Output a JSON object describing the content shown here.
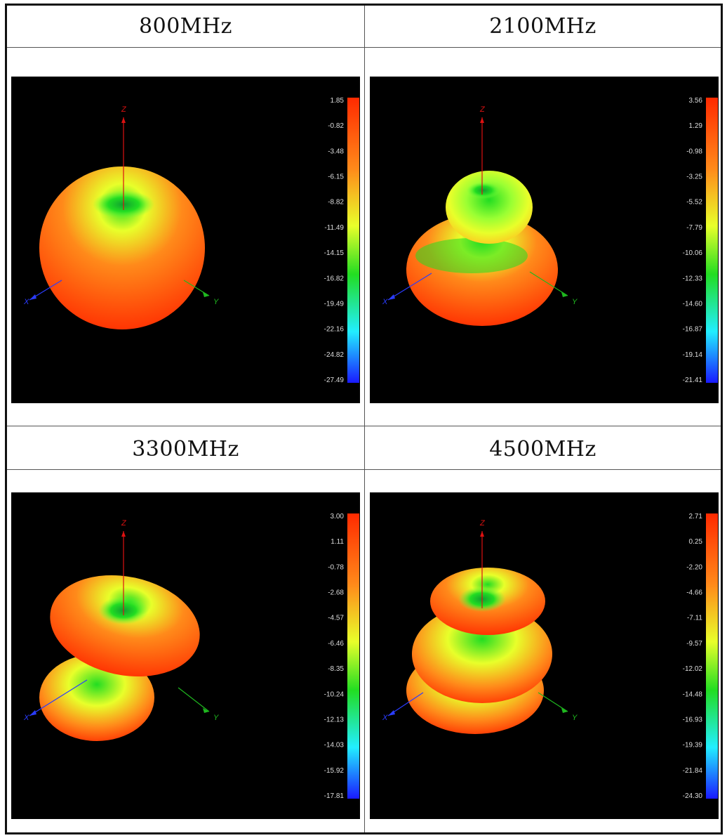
{
  "panels": [
    {
      "id": "p800",
      "title": "800MHz",
      "scale": [
        "1.85",
        "-0.82",
        "-3.48",
        "-6.15",
        "-8.82",
        "-11.49",
        "-14.15",
        "-16.82",
        "-19.49",
        "-22.16",
        "-24.82",
        "-27.49"
      ]
    },
    {
      "id": "p2100",
      "title": "2100MHz",
      "scale": [
        "3.56",
        "1.29",
        "-0.98",
        "-3.25",
        "-5.52",
        "-7.79",
        "-10.06",
        "-12.33",
        "-14.60",
        "-16.87",
        "-19.14",
        "-21.41"
      ]
    },
    {
      "id": "p3300",
      "title": "3300MHz",
      "scale": [
        "3.00",
        "1.11",
        "-0.78",
        "-2.68",
        "-4.57",
        "-6.46",
        "-8.35",
        "-10.24",
        "-12.13",
        "-14.03",
        "-15.92",
        "-17.81"
      ]
    },
    {
      "id": "p4500",
      "title": "4500MHz",
      "scale": [
        "2.71",
        "0.25",
        "-2.20",
        "-4.66",
        "-7.11",
        "-9.57",
        "-12.02",
        "-14.48",
        "-16.93",
        "-19.39",
        "-21.84",
        "-24.30"
      ]
    }
  ],
  "axes": {
    "z": "Z",
    "x": "X",
    "y": "Y"
  },
  "colors": {
    "red": "#ff2a00",
    "orange": "#ff8a1a",
    "yellow": "#e8ff2a",
    "green": "#22dd22",
    "cyan": "#22eeff",
    "blue": "#1a1aff"
  }
}
